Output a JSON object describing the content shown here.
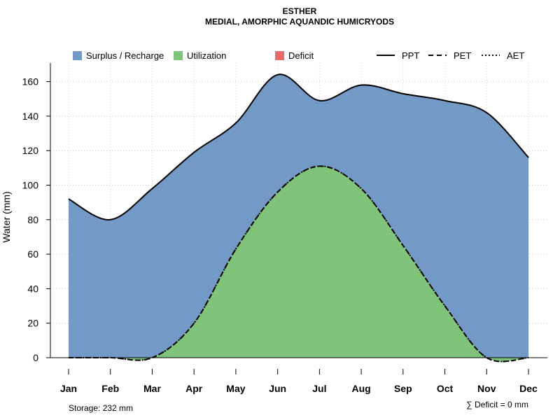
{
  "chart_data": {
    "type": "area",
    "title": "ESTHER",
    "subtitle": "MEDIAL, AMORPHIC AQUANDIC HUMICRYODS",
    "xlabel": "",
    "ylabel": "Water (mm)",
    "categories": [
      "Jan",
      "Feb",
      "Mar",
      "Apr",
      "May",
      "Jun",
      "Jul",
      "Aug",
      "Sep",
      "Oct",
      "Nov",
      "Dec"
    ],
    "ylim": [
      0,
      170
    ],
    "yticks": [
      0,
      20,
      40,
      60,
      80,
      100,
      120,
      140,
      160
    ],
    "grid": true,
    "series": [
      {
        "name": "PPT",
        "style": "solid",
        "values": [
          92,
          80,
          98,
          119,
          136,
          164,
          149,
          158,
          153,
          149,
          142,
          116
        ]
      },
      {
        "name": "PET",
        "style": "dashed",
        "values": [
          0,
          0,
          0,
          20,
          63,
          96,
          111,
          98,
          65,
          30,
          0,
          0
        ]
      },
      {
        "name": "AET",
        "style": "dotted",
        "values": [
          0,
          0,
          0,
          20,
          63,
          96,
          111,
          98,
          65,
          30,
          0,
          0
        ]
      }
    ],
    "legend": [
      {
        "label": "Surplus / Recharge",
        "kind": "fill",
        "color": "#7399C6"
      },
      {
        "label": "Utilization",
        "kind": "fill",
        "color": "#7FC47A"
      },
      {
        "label": "Deficit",
        "kind": "fill",
        "color": "#E86A6A"
      },
      {
        "label": "PPT",
        "kind": "line",
        "dash": "solid"
      },
      {
        "label": "PET",
        "kind": "line",
        "dash": "dashed"
      },
      {
        "label": "AET",
        "kind": "line",
        "dash": "dotted"
      }
    ],
    "legend_position": "top",
    "storage_note": "Storage: 232 mm",
    "deficit_note": "∑ Deficit = 0 mm"
  }
}
